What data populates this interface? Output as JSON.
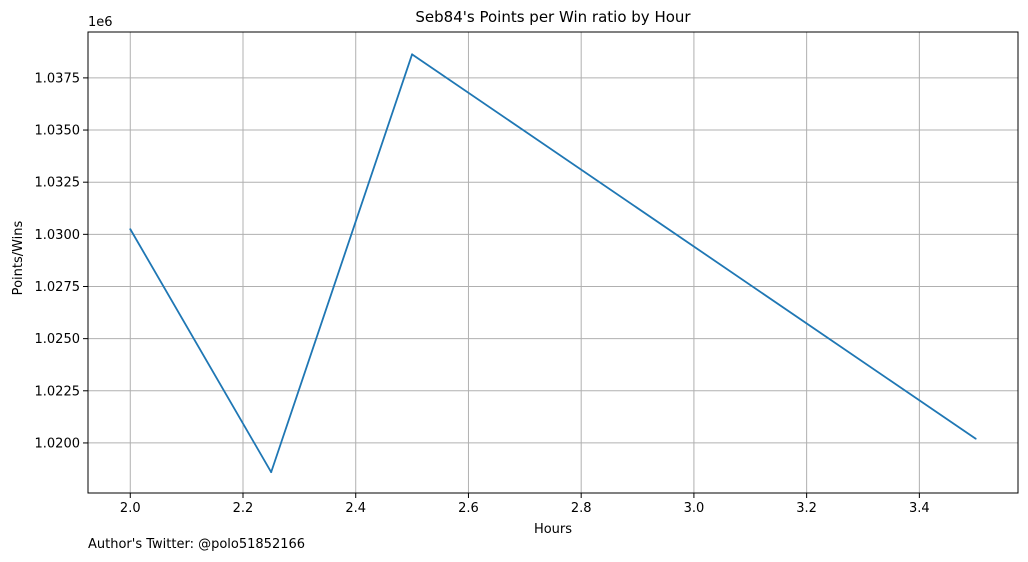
{
  "footer": {
    "text": "Author's Twitter: @polo51852166"
  },
  "chart_data": {
    "type": "line",
    "title": "Seb84's Points per Win ratio by Hour",
    "xlabel": "Hours",
    "ylabel": "Points/Wins",
    "y_offset_label": "1e6",
    "x": [
      2.0,
      2.25,
      2.5,
      3.5
    ],
    "series": [
      {
        "values": [
          1030250,
          1018600,
          1038630,
          1020200
        ],
        "color": "#1f77b4"
      }
    ],
    "xlim": [
      1.925,
      3.575
    ],
    "ylim": [
      1.0176,
      1.0397
    ],
    "y_scale_factor": 1000000,
    "x_ticks": [
      {
        "value": 2.0,
        "label": "2.0"
      },
      {
        "value": 2.2,
        "label": "2.2"
      },
      {
        "value": 2.4,
        "label": "2.4"
      },
      {
        "value": 2.6,
        "label": "2.6"
      },
      {
        "value": 2.8,
        "label": "2.8"
      },
      {
        "value": 3.0,
        "label": "3.0"
      },
      {
        "value": 3.2,
        "label": "3.2"
      },
      {
        "value": 3.4,
        "label": "3.4"
      }
    ],
    "y_ticks": [
      {
        "value": 1.02,
        "label": "1.0200"
      },
      {
        "value": 1.0225,
        "label": "1.0225"
      },
      {
        "value": 1.025,
        "label": "1.0250"
      },
      {
        "value": 1.0275,
        "label": "1.0275"
      },
      {
        "value": 1.03,
        "label": "1.0300"
      },
      {
        "value": 1.0325,
        "label": "1.0325"
      },
      {
        "value": 1.035,
        "label": "1.0350"
      },
      {
        "value": 1.0375,
        "label": "1.0375"
      }
    ],
    "grid": true,
    "colors": {
      "line": "#1f77b4",
      "grid": "#b0b0b0",
      "axes": "#000000"
    }
  }
}
